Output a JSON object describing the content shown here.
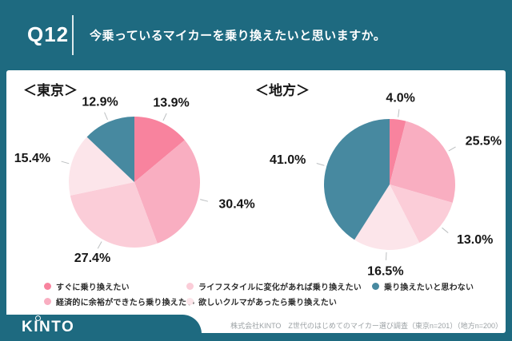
{
  "header": {
    "question_number": "Q12",
    "question": "今乗っているマイカーを乗り換えたいと思いますか。"
  },
  "chart_data": [
    {
      "type": "pie",
      "region_title": "＜東京＞",
      "categories": [
        "すぐに乗り換えたい",
        "経済的に余裕ができたら乗り換えたい",
        "ライフスタイルに変化があれば乗り換えたい",
        "欲しいクルマがあったら乗り換えたい",
        "乗り換えたいと思わない"
      ],
      "values": [
        13.9,
        30.4,
        27.4,
        15.4,
        12.9
      ],
      "data_labels": [
        "13.9%",
        "30.4%",
        "27.4%",
        "15.4%",
        "12.9%"
      ],
      "colors": [
        "#F8839E",
        "#F9AEC1",
        "#FBCDD8",
        "#FCE5EA",
        "#4789A0"
      ],
      "start_angle_deg": 0,
      "direction": "clockwise",
      "legend_position": "bottom"
    },
    {
      "type": "pie",
      "region_title": "＜地方＞",
      "categories": [
        "すぐに乗り換えたい",
        "経済的に余裕ができたら乗り換えたい",
        "ライフスタイルに変化があれば乗り換えたい",
        "欲しいクルマがあったら乗り換えたい",
        "乗り換えたいと思わない"
      ],
      "values": [
        4.0,
        25.5,
        13.0,
        16.5,
        41.0
      ],
      "data_labels": [
        "4.0%",
        "25.5%",
        "13.0%",
        "16.5%",
        "41.0%"
      ],
      "colors": [
        "#F8839E",
        "#F9AEC1",
        "#FBCDD8",
        "#FCE5EA",
        "#4789A0"
      ],
      "start_angle_deg": 0,
      "direction": "clockwise",
      "legend_position": "bottom"
    }
  ],
  "legend": {
    "items": [
      {
        "label": "すぐに乗り換えたい",
        "color": "#F8839E"
      },
      {
        "label": "経済的に余裕ができたら乗り換えたい",
        "color": "#F9AEC1"
      },
      {
        "label": "ライフスタイルに変化があれば乗り換えたい",
        "color": "#FBCDD8"
      },
      {
        "label": "欲しいクルマがあったら乗り換えたい",
        "color": "#FCE5EA"
      },
      {
        "label": "乗り換えたいと思わない",
        "color": "#4789A0"
      }
    ]
  },
  "footer": {
    "logo_text": "KINTO",
    "source": "株式会社KINTO　Z世代のはじめてのマイカー選び調査（東京n=201）（地方n=200）"
  },
  "colors": {
    "header_bg": "#1E6A80",
    "card_bg": "#FFFFFF",
    "accent_teal": "#4789A0",
    "tick_gray": "#BCBFC1"
  }
}
